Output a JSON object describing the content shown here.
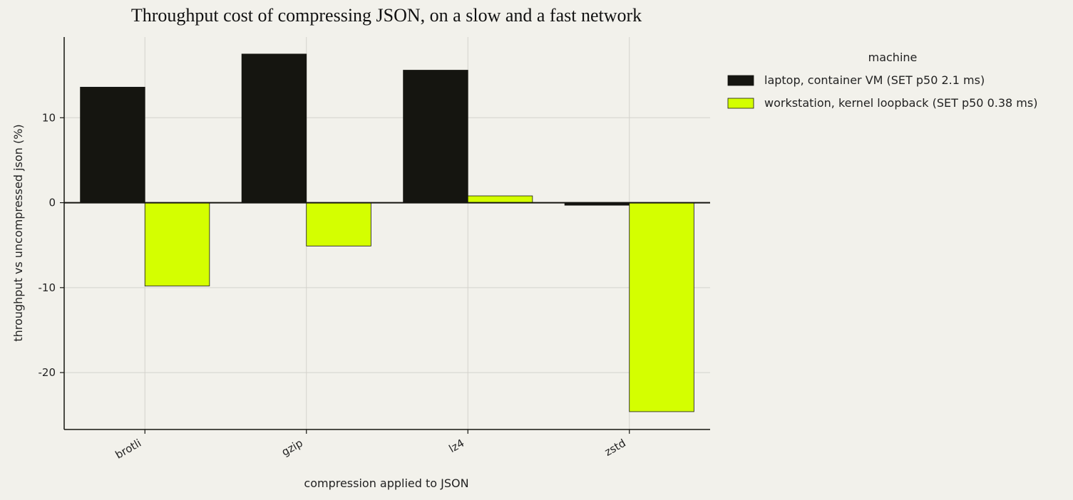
{
  "chart_data": {
    "type": "bar",
    "title": "Throughput cost of compressing JSON, on a slow and a fast network",
    "xlabel": "compression applied to JSON",
    "ylabel": "throughput vs uncompressed json (%)",
    "categories": [
      "brotli",
      "gzip",
      "lz4",
      "zstd"
    ],
    "ylim": [
      -26.7,
      19.5
    ],
    "yticks": [
      -20,
      -10,
      0,
      10
    ],
    "ytick_labels": [
      "-20",
      "-10",
      "0",
      "10"
    ],
    "grid": true,
    "legend": {
      "title": "machine",
      "placement": "right"
    },
    "series": [
      {
        "name": "laptop, container VM (SET p50 2.1 ms)",
        "color": "#151510",
        "values": [
          13.6,
          17.5,
          15.6,
          -0.3
        ]
      },
      {
        "name": "workstation, kernel loopback (SET p50 0.38 ms)",
        "color": "#d4ff00",
        "values": [
          -9.8,
          -5.1,
          0.8,
          -24.6
        ]
      }
    ]
  }
}
